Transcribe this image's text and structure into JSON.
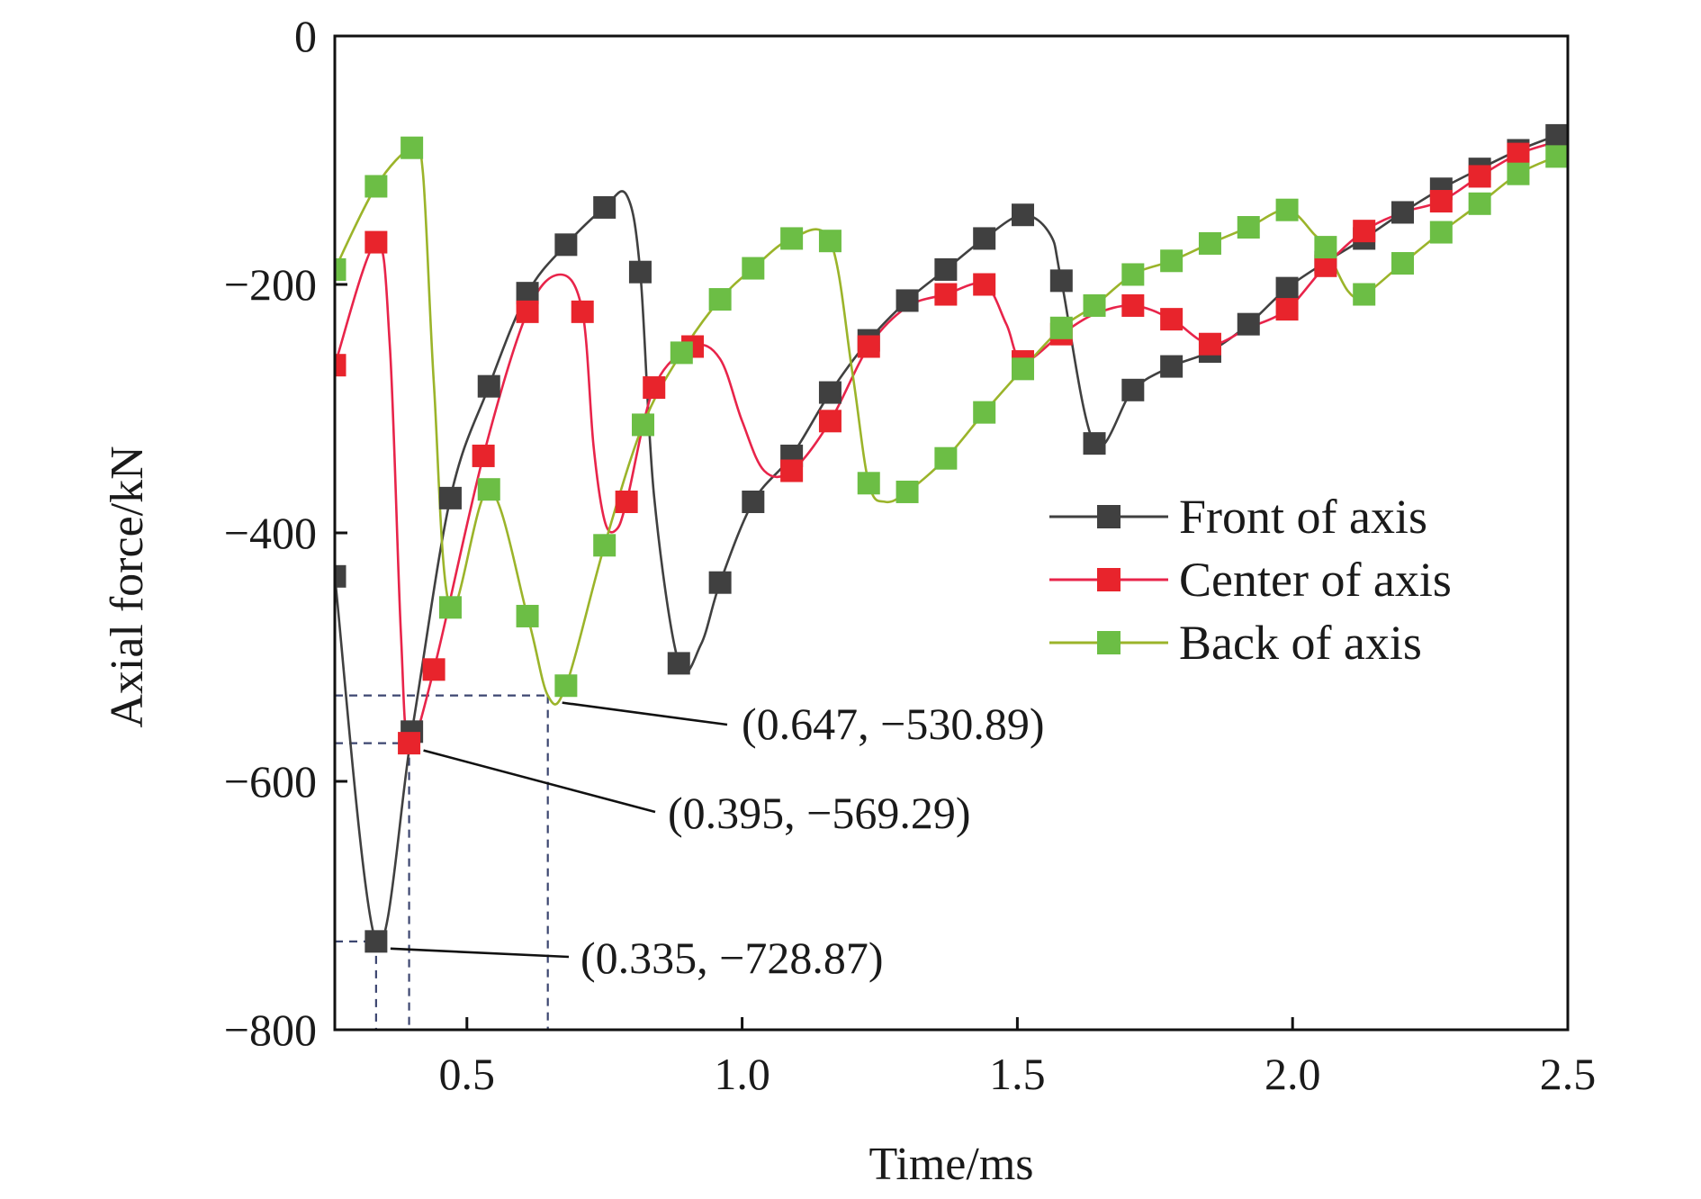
{
  "chart_data": {
    "type": "line",
    "title": "",
    "xlabel": "Time/ms",
    "ylabel": "Axial force/kN",
    "xlim": [
      0.26,
      2.5
    ],
    "ylim": [
      -800,
      0
    ],
    "xticks": [
      0.5,
      1.0,
      1.5,
      2.0,
      2.5
    ],
    "xtick_labels": [
      "0.5",
      "1.0",
      "1.5",
      "2.0",
      "2.5"
    ],
    "yticks": [
      0,
      -200,
      -400,
      -600,
      -800
    ],
    "ytick_labels": [
      "0",
      "−200",
      "−400",
      "−600",
      "−800"
    ],
    "grid": false,
    "legend_position": "right",
    "series": [
      {
        "name": "Front of axis",
        "color": "#404040",
        "marker_color": "#404040",
        "points": [
          [
            0.26,
            -435
          ],
          [
            0.335,
            -728.87
          ],
          [
            0.4,
            -560
          ],
          [
            0.47,
            -372
          ],
          [
            0.54,
            -282
          ],
          [
            0.61,
            -207
          ],
          [
            0.68,
            -168
          ],
          [
            0.75,
            -138
          ],
          [
            0.79,
            -128
          ],
          [
            0.815,
            -190
          ],
          [
            0.84,
            -370
          ],
          [
            0.885,
            -505
          ],
          [
            0.925,
            -490
          ],
          [
            0.96,
            -440
          ],
          [
            1.02,
            -375
          ],
          [
            1.09,
            -338
          ],
          [
            1.16,
            -287
          ],
          [
            1.23,
            -245
          ],
          [
            1.3,
            -213
          ],
          [
            1.37,
            -188
          ],
          [
            1.44,
            -163
          ],
          [
            1.51,
            -144
          ],
          [
            1.56,
            -160
          ],
          [
            1.58,
            -197
          ],
          [
            1.64,
            -328
          ],
          [
            1.71,
            -285
          ],
          [
            1.78,
            -266
          ],
          [
            1.85,
            -254
          ],
          [
            1.92,
            -232
          ],
          [
            1.99,
            -203
          ],
          [
            2.06,
            -182
          ],
          [
            2.13,
            -163
          ],
          [
            2.2,
            -142
          ],
          [
            2.27,
            -123
          ],
          [
            2.34,
            -107
          ],
          [
            2.41,
            -92
          ],
          [
            2.48,
            -80
          ],
          [
            2.5,
            -77
          ]
        ],
        "markers": [
          [
            0.26,
            -435
          ],
          [
            0.335,
            -728.87
          ],
          [
            0.4,
            -560
          ],
          [
            0.47,
            -372
          ],
          [
            0.54,
            -282
          ],
          [
            0.61,
            -207
          ],
          [
            0.68,
            -168
          ],
          [
            0.75,
            -138
          ],
          [
            0.815,
            -190
          ],
          [
            0.885,
            -505
          ],
          [
            0.96,
            -440
          ],
          [
            1.02,
            -375
          ],
          [
            1.09,
            -338
          ],
          [
            1.16,
            -287
          ],
          [
            1.23,
            -245
          ],
          [
            1.3,
            -213
          ],
          [
            1.37,
            -188
          ],
          [
            1.44,
            -163
          ],
          [
            1.51,
            -144
          ],
          [
            1.58,
            -197
          ],
          [
            1.64,
            -328
          ],
          [
            1.71,
            -285
          ],
          [
            1.78,
            -266
          ],
          [
            1.85,
            -254
          ],
          [
            1.92,
            -232
          ],
          [
            1.99,
            -203
          ],
          [
            2.06,
            -182
          ],
          [
            2.13,
            -163
          ],
          [
            2.2,
            -142
          ],
          [
            2.27,
            -123
          ],
          [
            2.34,
            -107
          ],
          [
            2.41,
            -92
          ],
          [
            2.48,
            -80
          ]
        ]
      },
      {
        "name": "Center of axis",
        "color": "#e8244a",
        "marker_color": "#e8242c",
        "points": [
          [
            0.26,
            -265
          ],
          [
            0.335,
            -166
          ],
          [
            0.36,
            -250
          ],
          [
            0.38,
            -480
          ],
          [
            0.395,
            -569.29
          ],
          [
            0.44,
            -510
          ],
          [
            0.53,
            -338
          ],
          [
            0.61,
            -222
          ],
          [
            0.67,
            -192
          ],
          [
            0.71,
            -222
          ],
          [
            0.73,
            -330
          ],
          [
            0.75,
            -390
          ],
          [
            0.77,
            -398
          ],
          [
            0.79,
            -375
          ],
          [
            0.84,
            -283
          ],
          [
            0.91,
            -250
          ],
          [
            0.96,
            -260
          ],
          [
            1.0,
            -310
          ],
          [
            1.04,
            -350
          ],
          [
            1.09,
            -350
          ],
          [
            1.16,
            -310
          ],
          [
            1.23,
            -250
          ],
          [
            1.3,
            -218
          ],
          [
            1.37,
            -208
          ],
          [
            1.44,
            -200
          ],
          [
            1.48,
            -232
          ],
          [
            1.51,
            -262
          ],
          [
            1.58,
            -240
          ],
          [
            1.64,
            -224
          ],
          [
            1.71,
            -217
          ],
          [
            1.78,
            -228
          ],
          [
            1.85,
            -248
          ],
          [
            1.92,
            -235
          ],
          [
            1.99,
            -220
          ],
          [
            2.06,
            -185
          ],
          [
            2.13,
            -157
          ],
          [
            2.2,
            -142
          ],
          [
            2.27,
            -133
          ],
          [
            2.34,
            -113
          ],
          [
            2.41,
            -95
          ],
          [
            2.48,
            -85
          ],
          [
            2.5,
            -82
          ]
        ],
        "markers": [
          [
            0.26,
            -265
          ],
          [
            0.335,
            -166
          ],
          [
            0.395,
            -569.29
          ],
          [
            0.44,
            -510
          ],
          [
            0.53,
            -338
          ],
          [
            0.61,
            -222
          ],
          [
            0.71,
            -222
          ],
          [
            0.79,
            -375
          ],
          [
            0.84,
            -283
          ],
          [
            0.91,
            -250
          ],
          [
            1.09,
            -350
          ],
          [
            1.16,
            -310
          ],
          [
            1.23,
            -250
          ],
          [
            1.37,
            -208
          ],
          [
            1.44,
            -200
          ],
          [
            1.51,
            -262
          ],
          [
            1.58,
            -240
          ],
          [
            1.71,
            -217
          ],
          [
            1.78,
            -228
          ],
          [
            1.85,
            -248
          ],
          [
            1.99,
            -220
          ],
          [
            2.06,
            -185
          ],
          [
            2.13,
            -157
          ],
          [
            2.27,
            -133
          ],
          [
            2.34,
            -113
          ],
          [
            2.41,
            -95
          ]
        ]
      },
      {
        "name": "Back of axis",
        "color": "#9bb42a",
        "marker_color": "#6cbe45",
        "points": [
          [
            0.26,
            -188
          ],
          [
            0.335,
            -121
          ],
          [
            0.4,
            -90
          ],
          [
            0.42,
            -110
          ],
          [
            0.44,
            -280
          ],
          [
            0.47,
            -460
          ],
          [
            0.54,
            -365
          ],
          [
            0.61,
            -467
          ],
          [
            0.647,
            -530.89
          ],
          [
            0.68,
            -523
          ],
          [
            0.75,
            -410
          ],
          [
            0.82,
            -313
          ],
          [
            0.89,
            -255
          ],
          [
            0.96,
            -212
          ],
          [
            1.02,
            -187
          ],
          [
            1.09,
            -163
          ],
          [
            1.16,
            -165
          ],
          [
            1.2,
            -270
          ],
          [
            1.23,
            -360
          ],
          [
            1.26,
            -375
          ],
          [
            1.3,
            -367
          ],
          [
            1.37,
            -340
          ],
          [
            1.44,
            -303
          ],
          [
            1.51,
            -268
          ],
          [
            1.58,
            -235
          ],
          [
            1.64,
            -217
          ],
          [
            1.71,
            -192
          ],
          [
            1.78,
            -181
          ],
          [
            1.85,
            -167
          ],
          [
            1.92,
            -154
          ],
          [
            1.99,
            -140
          ],
          [
            2.04,
            -160
          ],
          [
            2.06,
            -170
          ],
          [
            2.1,
            -205
          ],
          [
            2.13,
            -208
          ],
          [
            2.2,
            -183
          ],
          [
            2.27,
            -158
          ],
          [
            2.34,
            -135
          ],
          [
            2.41,
            -111
          ],
          [
            2.48,
            -97
          ],
          [
            2.5,
            -94
          ]
        ],
        "markers": [
          [
            0.26,
            -188
          ],
          [
            0.335,
            -121
          ],
          [
            0.4,
            -90
          ],
          [
            0.47,
            -460
          ],
          [
            0.54,
            -365
          ],
          [
            0.61,
            -467
          ],
          [
            0.68,
            -523
          ],
          [
            0.75,
            -410
          ],
          [
            0.82,
            -313
          ],
          [
            0.89,
            -255
          ],
          [
            0.96,
            -212
          ],
          [
            1.02,
            -187
          ],
          [
            1.09,
            -163
          ],
          [
            1.16,
            -165
          ],
          [
            1.23,
            -360
          ],
          [
            1.3,
            -367
          ],
          [
            1.37,
            -340
          ],
          [
            1.44,
            -303
          ],
          [
            1.51,
            -268
          ],
          [
            1.58,
            -235
          ],
          [
            1.64,
            -217
          ],
          [
            1.71,
            -192
          ],
          [
            1.78,
            -181
          ],
          [
            1.85,
            -167
          ],
          [
            1.92,
            -154
          ],
          [
            1.99,
            -140
          ],
          [
            2.06,
            -170
          ],
          [
            2.13,
            -208
          ],
          [
            2.2,
            -183
          ],
          [
            2.27,
            -158
          ],
          [
            2.34,
            -135
          ],
          [
            2.41,
            -111
          ],
          [
            2.48,
            -97
          ]
        ]
      }
    ],
    "annotations": [
      {
        "text": "(0.647, −530.89)",
        "x": 0.647,
        "y": -530.89
      },
      {
        "text": "(0.395, −569.29)",
        "x": 0.395,
        "y": -569.29
      },
      {
        "text": "(0.335, −728.87)",
        "x": 0.335,
        "y": -728.87
      }
    ]
  }
}
